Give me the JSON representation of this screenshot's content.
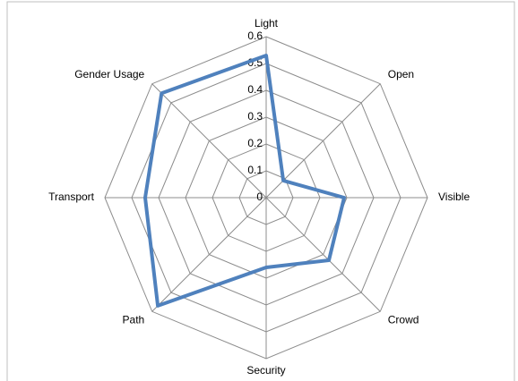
{
  "chart_data": {
    "type": "radar",
    "categories": [
      "Light",
      "Open",
      "Visible",
      "Crowd",
      "Security",
      "Path",
      "Transport",
      "Gender Usage"
    ],
    "values": [
      0.53,
      0.09,
      0.29,
      0.33,
      0.26,
      0.57,
      0.45,
      0.55
    ],
    "color": "#4f81bd",
    "ylim": [
      0,
      0.6
    ],
    "yticks": [
      0,
      0.1,
      0.2,
      0.3,
      0.4,
      0.5,
      0.6
    ],
    "grid": true
  }
}
